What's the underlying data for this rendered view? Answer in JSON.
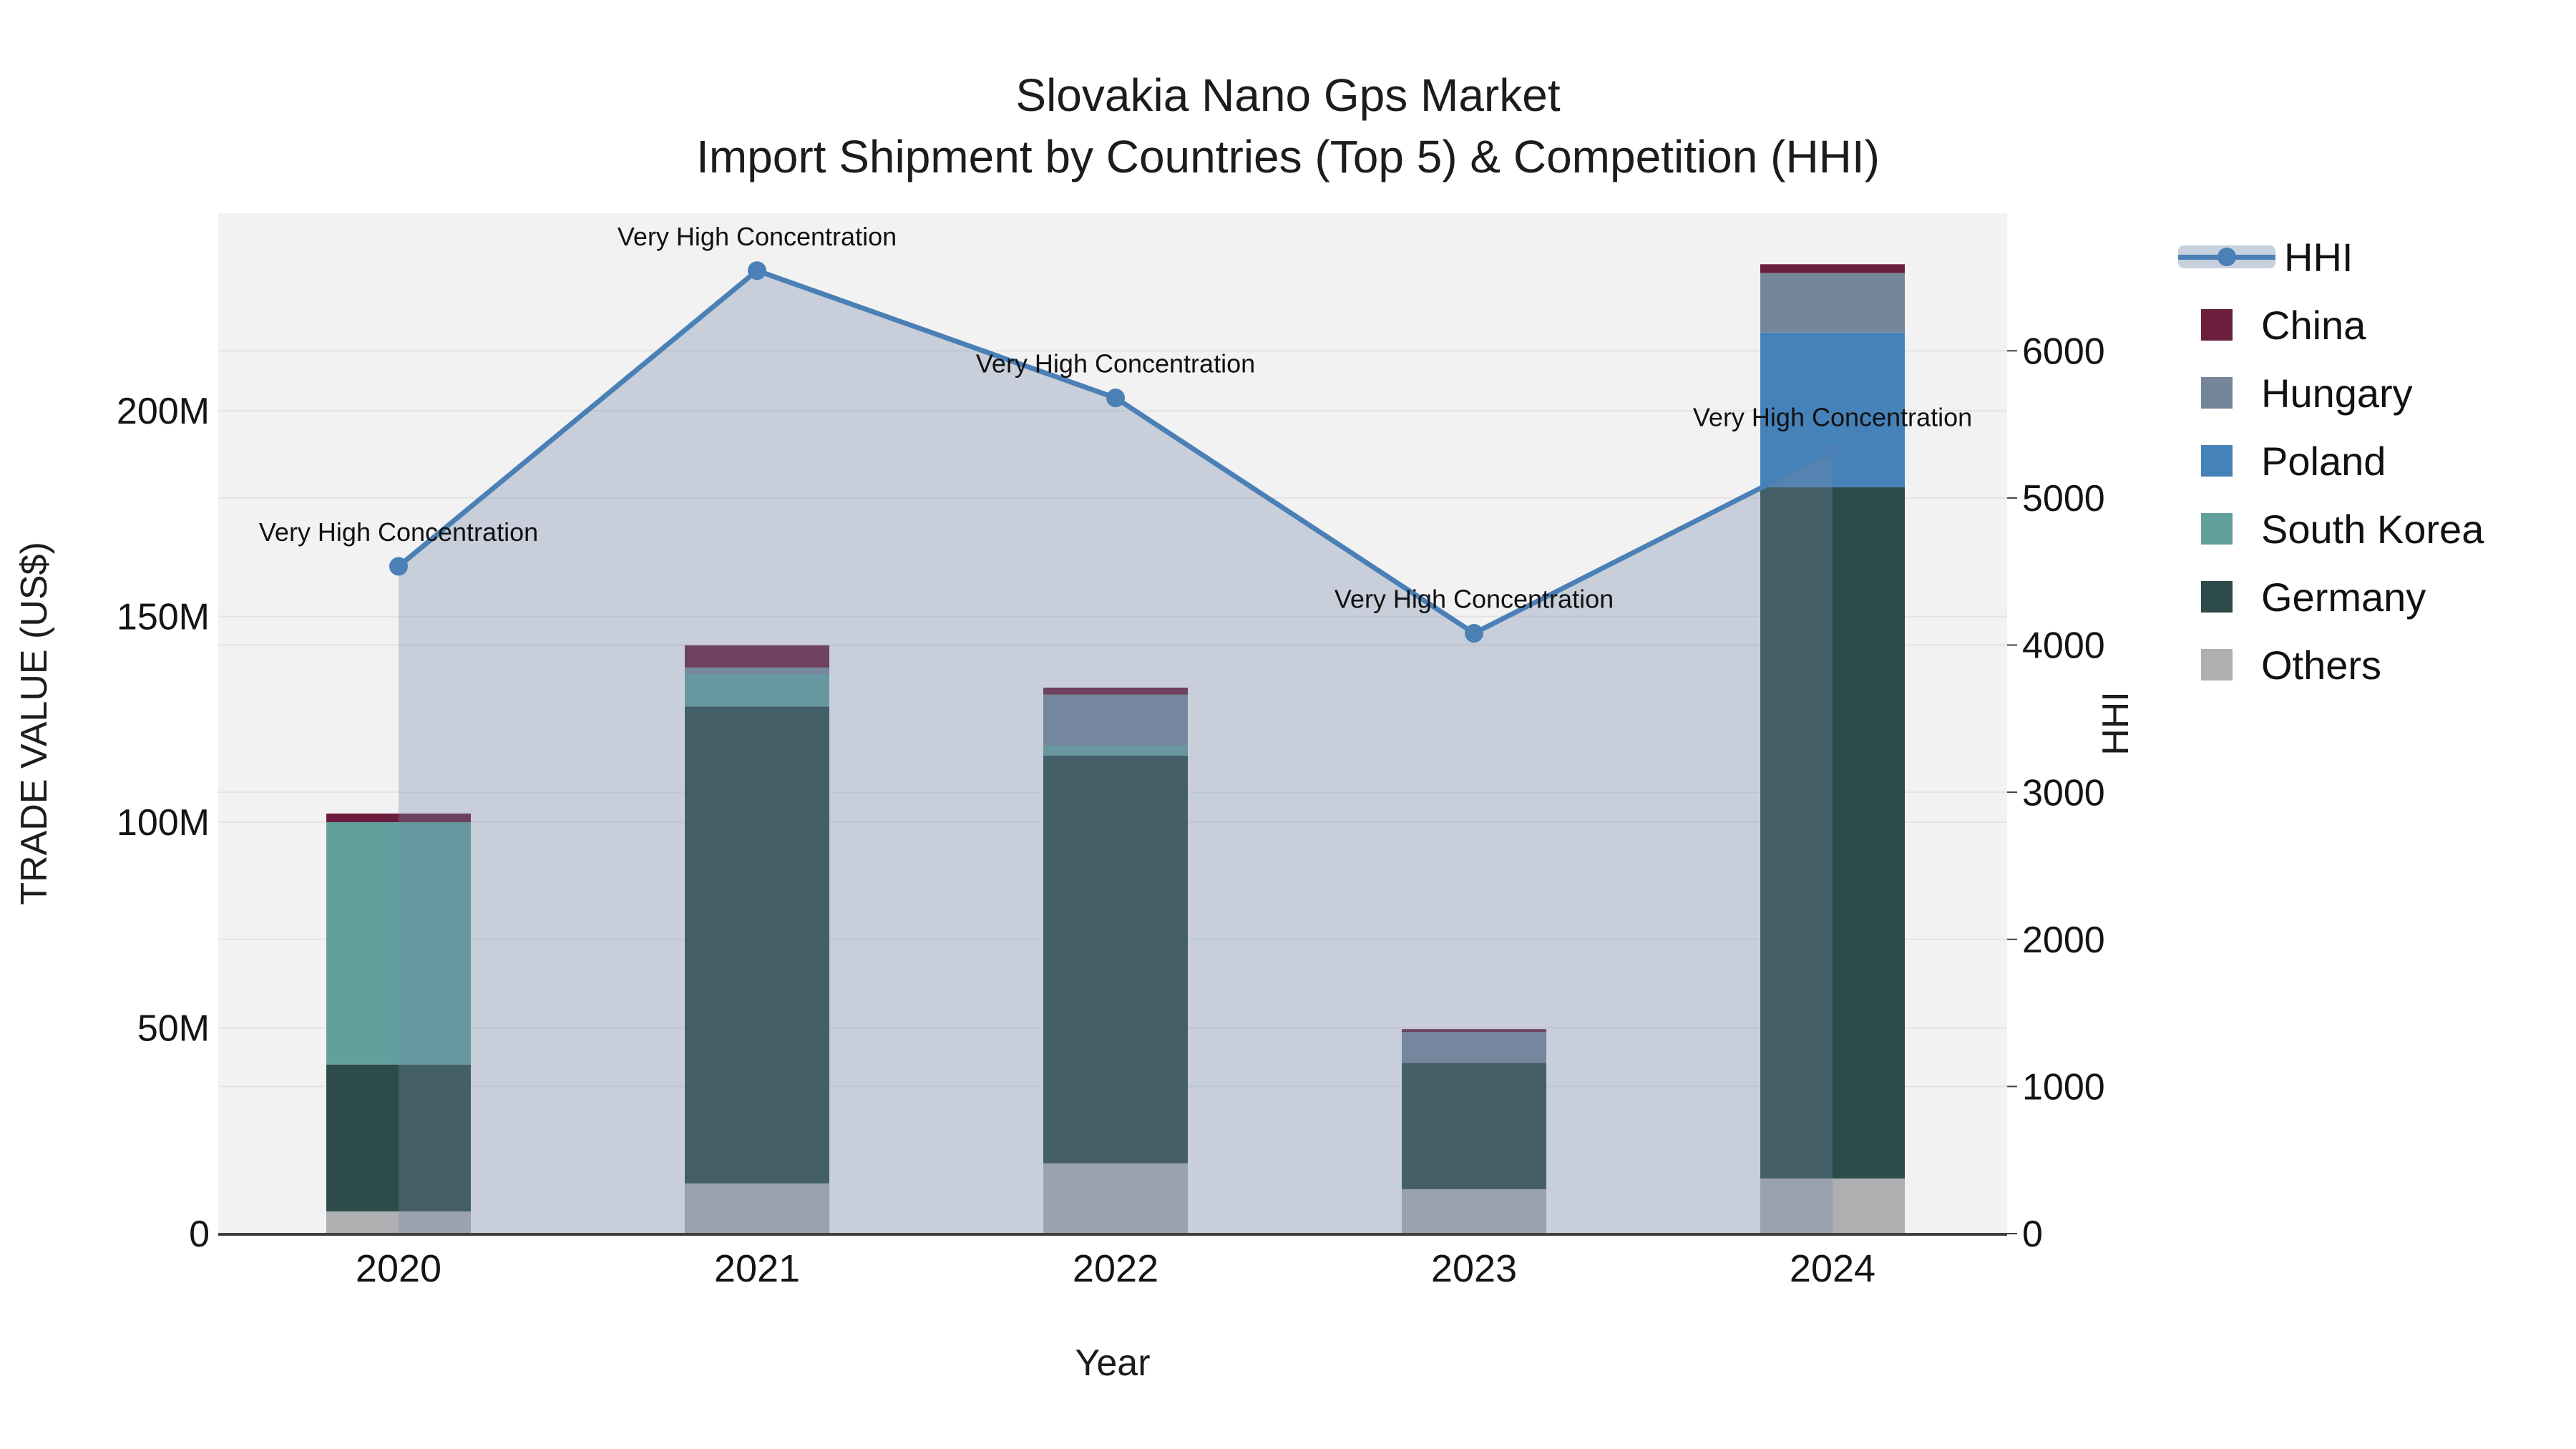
{
  "title": {
    "line1": "Slovakia Nano Gps Market",
    "line2": "Import Shipment by Countries (Top 5) & Competition (HHI)"
  },
  "axes": {
    "x_title": "Year",
    "y_left_title": "TRADE VALUE (US$)",
    "y_right_title": "HHI",
    "y_left_ticks": [
      {
        "label": "0",
        "value": 0
      },
      {
        "label": "50M",
        "value": 50
      },
      {
        "label": "100M",
        "value": 100
      },
      {
        "label": "150M",
        "value": 150
      },
      {
        "label": "200M",
        "value": 200
      }
    ],
    "y_right_ticks": [
      {
        "label": "0",
        "value": 0
      },
      {
        "label": "1000",
        "value": 1000
      },
      {
        "label": "2000",
        "value": 2000
      },
      {
        "label": "3000",
        "value": 3000
      },
      {
        "label": "4000",
        "value": 4000
      },
      {
        "label": "5000",
        "value": 5000
      },
      {
        "label": "6000",
        "value": 6000
      }
    ],
    "y_left_max": 248,
    "y_right_max": 6935
  },
  "legend": [
    {
      "label": "HHI",
      "type": "line",
      "color": "#4a80b5",
      "band": "#c7d0dd"
    },
    {
      "label": "China",
      "type": "box",
      "color": "#6b1e3d"
    },
    {
      "label": "Hungary",
      "type": "box",
      "color": "#76869a"
    },
    {
      "label": "Poland",
      "type": "box",
      "color": "#4682ba"
    },
    {
      "label": "South Korea",
      "type": "box",
      "color": "#62a09d"
    },
    {
      "label": "Germany",
      "type": "box",
      "color": "#2d4b48"
    },
    {
      "label": "Others",
      "type": "box",
      "color": "#aeafb1"
    }
  ],
  "chart_data": {
    "type": "combo-stacked-bar-line",
    "x": [
      "2020",
      "2021",
      "2022",
      "2023",
      "2024"
    ],
    "bar_unit": "M US$",
    "stack_bottom_to_top": true,
    "bar_series": [
      {
        "name": "Others",
        "color": "#aeafb1",
        "values": [
          5.4,
          12.2,
          17.1,
          10.8,
          13.4
        ]
      },
      {
        "name": "Germany",
        "color": "#2d4b48",
        "values": [
          35.7,
          115.9,
          99.1,
          30.7,
          168.0
        ]
      },
      {
        "name": "South Korea",
        "color": "#62a09d",
        "values": [
          58.9,
          7.8,
          2.4,
          0,
          0
        ]
      },
      {
        "name": "Poland",
        "color": "#4682ba",
        "values": [
          0,
          0,
          0,
          0,
          37.6
        ]
      },
      {
        "name": "Hungary",
        "color": "#76869a",
        "values": [
          0,
          1.7,
          12.4,
          7.5,
          14.5
        ]
      },
      {
        "name": "China",
        "color": "#6b1e3d",
        "values": [
          2.1,
          5.4,
          1.7,
          0.7,
          2.1
        ]
      }
    ],
    "bar_totals": [
      102.1,
      143.0,
      132.7,
      49.7,
      235.6
    ],
    "line_series": {
      "name": "HHI",
      "values": [
        4535,
        6545,
        5680,
        4080,
        5315
      ],
      "color": "#4a80b5",
      "area_fill": "rgba(116,138,167,0.33)"
    },
    "annotations": [
      "Very High Concentration",
      "Very High Concentration",
      "Very High Concentration",
      "Very High Concentration",
      "Very High Concentration"
    ],
    "title": "Slovakia Nano Gps Market — Import Shipment by Countries (Top 5) & Competition (HHI)",
    "xlabel": "Year",
    "ylabel_left": "TRADE VALUE (US$)",
    "ylabel_right": "HHI",
    "ylim_left": [
      0,
      248
    ],
    "ylim_right": [
      0,
      6935
    ],
    "grid": true,
    "legend_position": "right"
  },
  "colors": {
    "plot_bg": "#f2f2f3",
    "gridline": "#e3e3e6",
    "axis_line": "#3f3f3f",
    "text": "#141414"
  }
}
